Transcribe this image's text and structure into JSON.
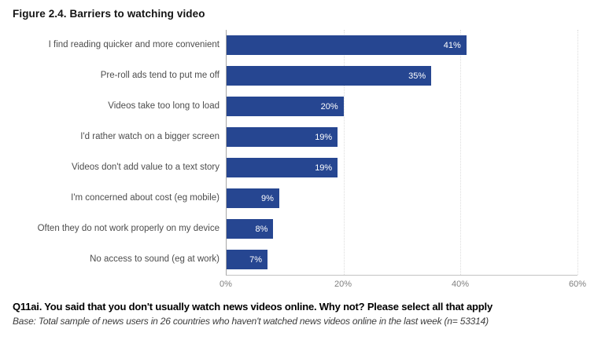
{
  "figure": {
    "title": "Figure 2.4. Barriers to watching video"
  },
  "chart_data": {
    "type": "bar",
    "orientation": "horizontal",
    "title": "Figure 2.4. Barriers to watching video",
    "categories": [
      "I find reading quicker and more convenient",
      "Pre-roll ads tend to put me off",
      "Videos take too long to load",
      "I'd rather watch on a bigger screen",
      "Videos don't add value to a text story",
      "I'm concerned about cost (eg mobile)",
      "Often they do not work properly on my device",
      "No access to sound (eg at work)"
    ],
    "values": [
      41,
      35,
      20,
      19,
      19,
      9,
      8,
      7
    ],
    "value_labels": [
      "41%",
      "35%",
      "20%",
      "19%",
      "19%",
      "9%",
      "8%",
      "7%"
    ],
    "xlabel": "",
    "ylabel": "",
    "xlim": [
      0,
      60
    ],
    "x_ticks": [
      0,
      20,
      40,
      60
    ],
    "x_tick_labels": [
      "0%",
      "20%",
      "40%",
      "60%"
    ],
    "grid": "vertical dotted gridlines at 20%, 40%, 60%",
    "legend": "none",
    "colors": {
      "bar": "#264691",
      "value_label": "#ffffff",
      "category_label": "#4d4d4d",
      "tick_label": "#7f7f7f",
      "axis_line": "#a6a6a6",
      "gridline": "#dcdcdc"
    }
  },
  "footer": {
    "question": "Q11ai. You said that you don't usually watch news videos online. Why not? Please select all that apply",
    "base": "Base: Total sample of news users in 26 countries who haven't watched news videos online in the last week (n= 53314)"
  }
}
